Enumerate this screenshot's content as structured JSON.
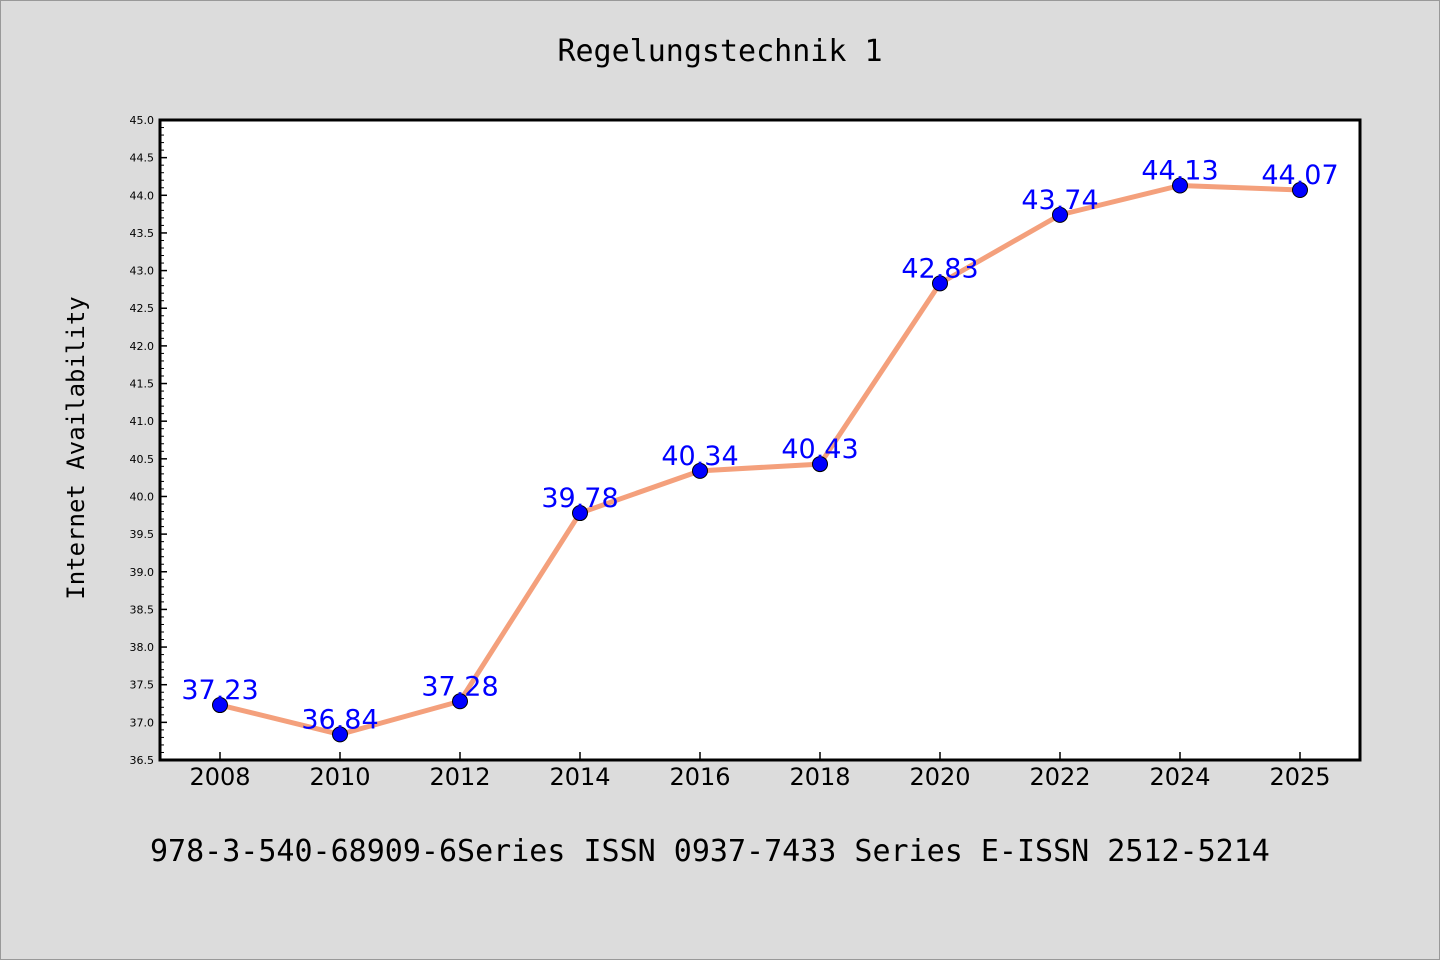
{
  "title": "Regelungstechnik 1",
  "footer": "978-3-540-68909-6Series ISSN 0937-7433 Series E-ISSN 2512-5214",
  "chart_data": {
    "type": "line",
    "title": "Regelungstechnik 1",
    "xlabel": "",
    "ylabel": "Internet Availability",
    "categories": [
      "2008",
      "2010",
      "2012",
      "2014",
      "2016",
      "2018",
      "2020",
      "2022",
      "2024",
      "2025"
    ],
    "series": [
      {
        "values": [
          37.23,
          36.84,
          37.28,
          39.78,
          40.34,
          40.43,
          42.83,
          43.74,
          44.13,
          44.07
        ],
        "line_color": "#f4a07c",
        "marker_color": "#0000ff"
      }
    ],
    "data_labels": [
      "37.23",
      "36.84",
      "37.28",
      "39.78",
      "40.34",
      "40.43",
      "42.83",
      "43.74",
      "44.13",
      "44.07"
    ],
    "ylim": [
      36.5,
      45.0
    ],
    "yticks": [
      "36.5",
      "37.0",
      "37.5",
      "38.0",
      "38.5",
      "39.0",
      "39.5",
      "40.0",
      "40.5",
      "41.0",
      "41.5",
      "42.0",
      "42.5",
      "43.0",
      "43.5",
      "44.0",
      "44.5",
      "45.0"
    ],
    "grid": false,
    "legend": "none",
    "background": "#dcdcdc",
    "plot_background": "#ffffff"
  }
}
